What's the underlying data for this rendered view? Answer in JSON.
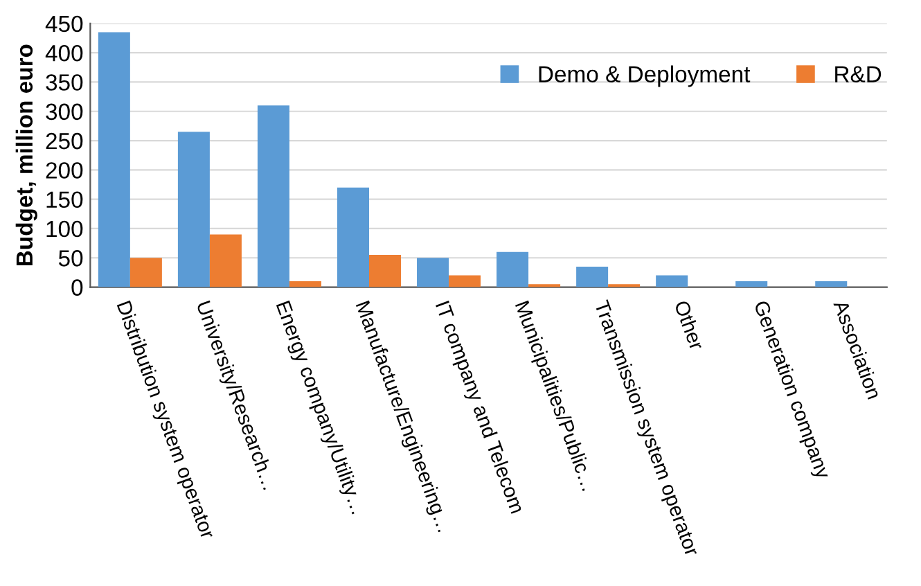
{
  "chart_data": {
    "type": "bar",
    "ylabel": "Budget, million euro",
    "categories": [
      "Distribution system operator",
      "University/Research…",
      "Energy company/Utility…",
      "Manufacture/Engineering…",
      "IT company and Telecom",
      "Municipalities/Public…",
      "Transmission system operator",
      "Other",
      "Generation company",
      "Association"
    ],
    "series": [
      {
        "name": "Demo & Deployment",
        "color": "#5b9bd5",
        "values": [
          435,
          265,
          310,
          170,
          50,
          60,
          35,
          20,
          10,
          10
        ]
      },
      {
        "name": "R&D",
        "color": "#ed7d31",
        "values": [
          50,
          90,
          10,
          55,
          20,
          5,
          5,
          0,
          0,
          0
        ]
      }
    ],
    "ylim": [
      0,
      450
    ],
    "yticks": [
      0,
      50,
      100,
      150,
      200,
      250,
      300,
      350,
      400,
      450
    ],
    "grid": "y",
    "legend": "top right"
  }
}
